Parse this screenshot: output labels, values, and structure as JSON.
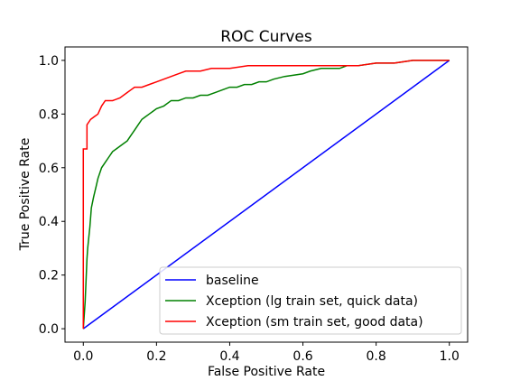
{
  "chart_data": {
    "type": "line",
    "title": "ROC Curves",
    "xlabel": "False Positive Rate",
    "ylabel": "True Positive Rate",
    "xlim": [
      -0.05,
      1.05
    ],
    "ylim": [
      -0.05,
      1.05
    ],
    "xticks": [
      0.0,
      0.2,
      0.4,
      0.6,
      0.8,
      1.0
    ],
    "xtick_labels": [
      "0.0",
      "0.2",
      "0.4",
      "0.6",
      "0.8",
      "1.0"
    ],
    "yticks": [
      0.0,
      0.2,
      0.4,
      0.6,
      0.8,
      1.0
    ],
    "ytick_labels": [
      "0.0",
      "0.2",
      "0.4",
      "0.6",
      "0.8",
      "1.0"
    ],
    "grid": false,
    "legend_position": "lower-right",
    "series": [
      {
        "name": "baseline",
        "color": "#0000ff",
        "x": [
          0.0,
          1.0
        ],
        "y": [
          0.0,
          1.0
        ]
      },
      {
        "name": "Xception (lg train set, quick data)",
        "color": "#008000",
        "x": [
          0.0,
          0.005,
          0.01,
          0.012,
          0.018,
          0.022,
          0.028,
          0.035,
          0.04,
          0.05,
          0.06,
          0.07,
          0.08,
          0.09,
          0.1,
          0.11,
          0.12,
          0.13,
          0.14,
          0.15,
          0.16,
          0.17,
          0.18,
          0.19,
          0.2,
          0.22,
          0.24,
          0.26,
          0.28,
          0.3,
          0.32,
          0.34,
          0.36,
          0.38,
          0.4,
          0.42,
          0.44,
          0.46,
          0.48,
          0.5,
          0.52,
          0.55,
          0.6,
          0.62,
          0.65,
          0.68,
          0.7,
          0.72,
          0.75,
          0.8,
          0.85,
          0.9,
          0.95,
          1.0
        ],
        "y": [
          0.0,
          0.1,
          0.26,
          0.3,
          0.38,
          0.45,
          0.49,
          0.53,
          0.56,
          0.6,
          0.62,
          0.64,
          0.66,
          0.67,
          0.68,
          0.69,
          0.7,
          0.72,
          0.74,
          0.76,
          0.78,
          0.79,
          0.8,
          0.81,
          0.82,
          0.83,
          0.85,
          0.85,
          0.86,
          0.86,
          0.87,
          0.87,
          0.88,
          0.89,
          0.9,
          0.9,
          0.91,
          0.91,
          0.92,
          0.92,
          0.93,
          0.94,
          0.95,
          0.96,
          0.97,
          0.97,
          0.97,
          0.98,
          0.98,
          0.99,
          0.99,
          1.0,
          1.0,
          1.0
        ]
      },
      {
        "name": "Xception (sm train set, good data)",
        "color": "#ff0000",
        "x": [
          0.0,
          0.0,
          0.01,
          0.01,
          0.02,
          0.03,
          0.04,
          0.05,
          0.06,
          0.08,
          0.1,
          0.12,
          0.13,
          0.14,
          0.16,
          0.18,
          0.2,
          0.22,
          0.24,
          0.26,
          0.28,
          0.3,
          0.32,
          0.35,
          0.38,
          0.4,
          0.45,
          0.5,
          0.6,
          0.65,
          0.7,
          0.75,
          0.8,
          0.85,
          0.9,
          0.95,
          1.0
        ],
        "y": [
          0.0,
          0.67,
          0.67,
          0.76,
          0.78,
          0.79,
          0.8,
          0.83,
          0.85,
          0.85,
          0.86,
          0.88,
          0.89,
          0.9,
          0.9,
          0.91,
          0.92,
          0.93,
          0.94,
          0.95,
          0.96,
          0.96,
          0.96,
          0.97,
          0.97,
          0.97,
          0.98,
          0.98,
          0.98,
          0.98,
          0.98,
          0.98,
          0.99,
          0.99,
          1.0,
          1.0,
          1.0
        ]
      }
    ]
  }
}
